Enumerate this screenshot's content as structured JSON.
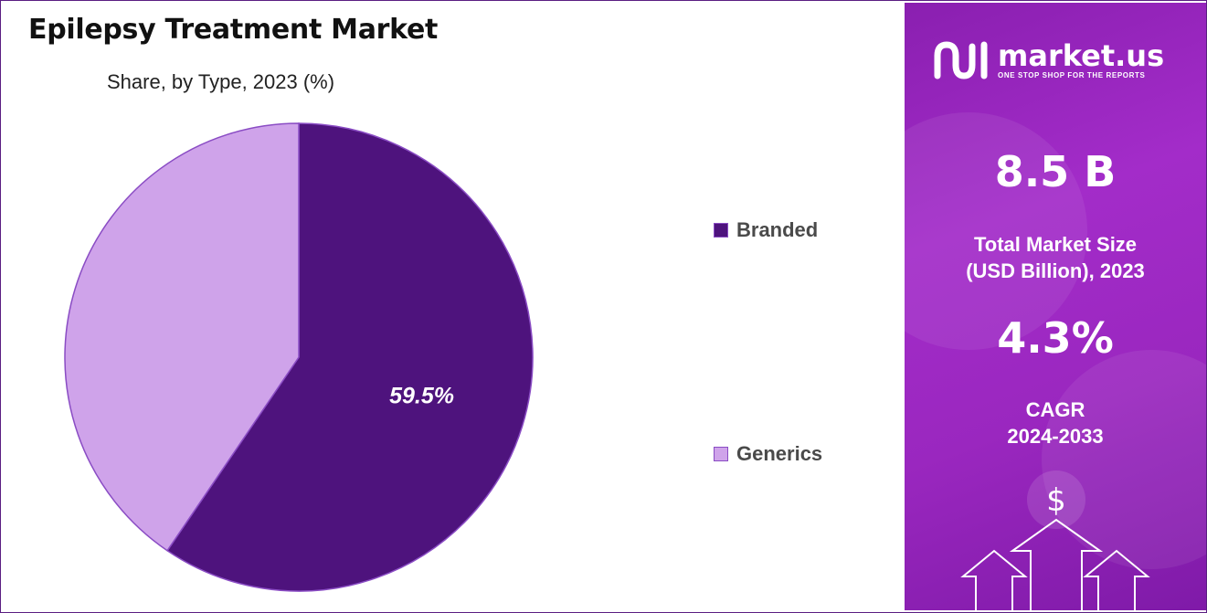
{
  "chart_data": {
    "type": "pie",
    "title": "Epilepsy Treatment Market",
    "subtitle": "Share, by Type, 2023 (%)",
    "slices": [
      {
        "label": "Branded",
        "value": 59.5,
        "data_label": "59.5%",
        "color": "#4e137d"
      },
      {
        "label": "Generics",
        "value": 40.5,
        "data_label": "",
        "color": "#cfa3ea"
      }
    ],
    "legend_placement": "right",
    "slice_border_color": "#8a4cc4"
  },
  "sidebar": {
    "brand_name": "market.us",
    "brand_tagline": "ONE STOP SHOP FOR THE REPORTS",
    "market_size_value": "8.5 B",
    "market_size_label_line1": "Total Market Size",
    "market_size_label_line2": "(USD Billion), 2023",
    "cagr_value": "4.3%",
    "cagr_label_line1": "CAGR",
    "cagr_label_line2": "2024-2033",
    "decor_symbol": "$",
    "colors": {
      "panel_start": "#8a1fb0",
      "panel_end": "#7f1aa8"
    },
    "icons": [
      "market-us-logo-icon",
      "dollar-icon",
      "up-arrow-icon"
    ]
  }
}
